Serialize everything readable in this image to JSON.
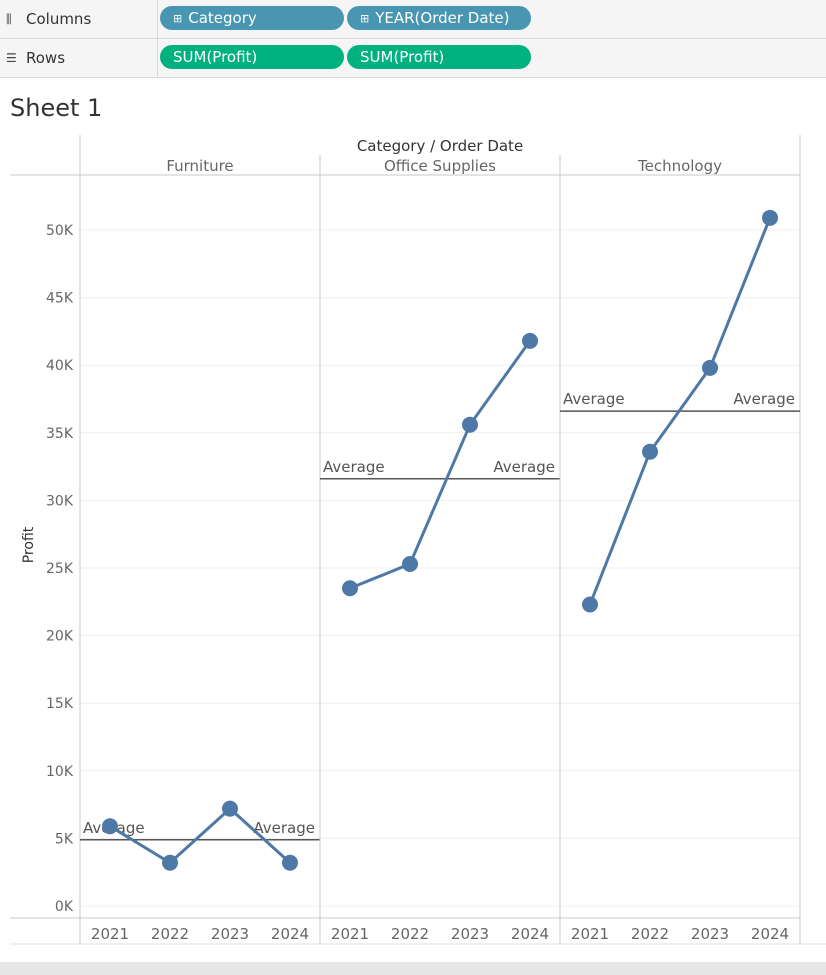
{
  "shelves": {
    "columns": {
      "label": "Columns",
      "pills": [
        "Category",
        "YEAR(Order Date)"
      ]
    },
    "rows": {
      "label": "Rows",
      "pills": [
        "SUM(Profit)",
        "SUM(Profit)"
      ]
    }
  },
  "sheet_title": "Sheet 1",
  "colors": {
    "dimension_pill": "#4996b2",
    "measure_pill": "#00b180",
    "line": "#4e79a7",
    "reference_line": "#555555"
  },
  "chart_data": {
    "type": "line",
    "header_title": "Category / Order Date",
    "ylabel": "Profit",
    "ylim": [
      0,
      54000
    ],
    "yticks": [
      0,
      5000,
      10000,
      15000,
      20000,
      25000,
      30000,
      35000,
      40000,
      45000,
      50000
    ],
    "ytick_labels": [
      "0K",
      "5K",
      "10K",
      "15K",
      "20K",
      "25K",
      "30K",
      "35K",
      "40K",
      "45K",
      "50K"
    ],
    "x": [
      "2021",
      "2022",
      "2023",
      "2024"
    ],
    "panels": [
      {
        "category": "Furniture",
        "values": [
          5900,
          3200,
          7200,
          3200
        ],
        "average": 4900,
        "average_label": "Average"
      },
      {
        "category": "Office Supplies",
        "values": [
          23500,
          25300,
          35600,
          41800
        ],
        "average": 31600,
        "average_label": "Average"
      },
      {
        "category": "Technology",
        "values": [
          22300,
          33600,
          39800,
          50900
        ],
        "average": 36600,
        "average_label": "Average"
      }
    ],
    "grid": true
  }
}
